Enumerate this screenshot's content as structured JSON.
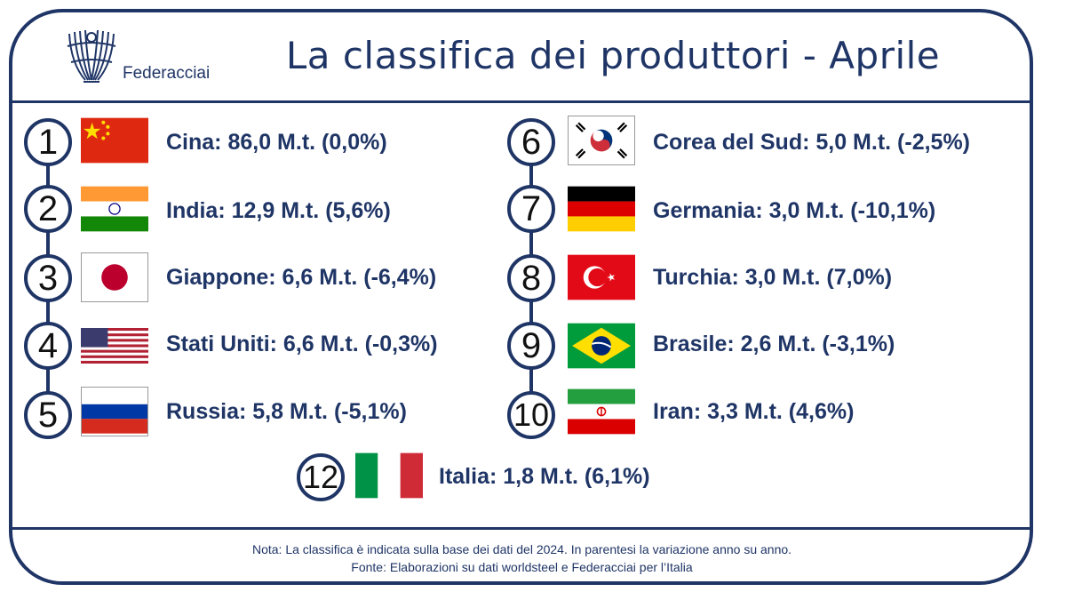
{
  "header": {
    "title": "La classifica dei produttori - Aprile",
    "logo_text": "Federacciai"
  },
  "rankings_left": [
    {
      "rank": "1",
      "text": "Cina: 86,0 M.t. (0,0%)",
      "flag": "china-flag"
    },
    {
      "rank": "2",
      "text": "India: 12,9 M.t. (5,6%)",
      "flag": "india-flag"
    },
    {
      "rank": "3",
      "text": "Giappone: 6,6 M.t. (-6,4%)",
      "flag": "japan-flag"
    },
    {
      "rank": "4",
      "text": "Stati Uniti: 6,6 M.t. (-0,3%)",
      "flag": "usa-flag"
    },
    {
      "rank": "5",
      "text": "Russia: 5,8 M.t. (-5,1%)",
      "flag": "russia-flag"
    }
  ],
  "rankings_right": [
    {
      "rank": "6",
      "text": "Corea del Sud: 5,0 M.t. (-2,5%)",
      "flag": "south-korea-flag"
    },
    {
      "rank": "7",
      "text": "Germania: 3,0 M.t. (-10,1%)",
      "flag": "germany-flag"
    },
    {
      "rank": "8",
      "text": "Turchia: 3,0 M.t. (7,0%)",
      "flag": "turkey-flag"
    },
    {
      "rank": "9",
      "text": "Brasile: 2,6 M.t. (-3,1%)",
      "flag": "brazil-flag"
    },
    {
      "rank": "10",
      "text": "Iran: 3,3 M.t. (4,6%)",
      "flag": "iran-flag"
    }
  ],
  "italy": {
    "rank": "12",
    "text": "Italia: 1,8 M.t. (6,1%)",
    "flag": "italy-flag"
  },
  "footer": {
    "note": "Nota: La classifica è indicata sulla base dei dati del 2024. In parentesi la variazione anno su anno.",
    "source": "Fonte: Elaborazioni su dati worldsteel e Federacciai per l’Italia"
  },
  "colors": {
    "primary": "#1f3566"
  }
}
